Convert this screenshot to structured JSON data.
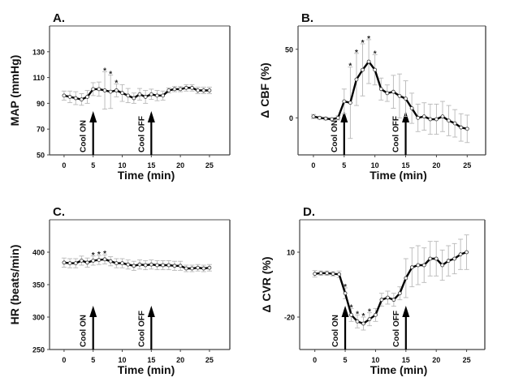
{
  "chart_data": [
    {
      "type": "line",
      "panel_label": "A.",
      "title": "",
      "xlabel": "Time (min)",
      "ylabel": "MAP (mmHg)",
      "xlim": [
        -2.5,
        28.5
      ],
      "ylim": [
        50,
        150
      ],
      "xticks": [
        0,
        5,
        10,
        15,
        20,
        25
      ],
      "yticks": [
        50,
        70,
        90,
        110,
        130
      ],
      "x": [
        0,
        1,
        2,
        3,
        4,
        5,
        6,
        7,
        8,
        9,
        10,
        11,
        12,
        13,
        14,
        15,
        16,
        17,
        18,
        19,
        20,
        21,
        22,
        23,
        24,
        25
      ],
      "series": [
        {
          "name": "MAP",
          "values": [
            96,
            95,
            94,
            93,
            95,
            101,
            101,
            100,
            99,
            100,
            98,
            96,
            94,
            97,
            95,
            97,
            96,
            96,
            100,
            101,
            101,
            102,
            102,
            100,
            100,
            100
          ],
          "errors": [
            3.5,
            4.5,
            5,
            4.5,
            5,
            5,
            5.5,
            14.5,
            13,
            5,
            6.5,
            5.5,
            4,
            4.5,
            5,
            4,
            4,
            3.5,
            2,
            2,
            2,
            2.5,
            2.5,
            2.5,
            2.5,
            2.5
          ]
        }
      ],
      "significant_x": [
        7,
        8,
        9
      ],
      "annotations": [
        {
          "text": "Cool ON",
          "x": 5
        },
        {
          "text": "Cool OFF",
          "x": 15
        }
      ],
      "grid": false
    },
    {
      "type": "line",
      "panel_label": "B.",
      "title": "",
      "xlabel": "Time (min)",
      "ylabel": "Δ CBF (%)",
      "xlim": [
        -2.5,
        28
      ],
      "ylim": [
        -27,
        67
      ],
      "xticks": [
        0,
        5,
        10,
        15,
        20,
        25
      ],
      "yticks": [
        0,
        50
      ],
      "x": [
        0,
        1,
        2,
        3,
        4,
        5,
        6,
        7,
        8,
        9,
        10,
        11,
        12,
        13,
        14,
        15,
        16,
        17,
        18,
        19,
        20,
        21,
        22,
        23,
        24,
        25
      ],
      "series": [
        {
          "name": "CBF change",
          "values": [
            1,
            0,
            -0.5,
            -1,
            0,
            12,
            11,
            28,
            35,
            41,
            35,
            21,
            18,
            19,
            16,
            14,
            7,
            0,
            1,
            -1,
            -1,
            1,
            -2,
            -4,
            -7,
            -8
          ],
          "errors": [
            1.5,
            1,
            1,
            1,
            1.5,
            9,
            26,
            19,
            19,
            16,
            11,
            8,
            6,
            12,
            16,
            13,
            11,
            10,
            10,
            11,
            11,
            11,
            11,
            10,
            10,
            10
          ]
        }
      ],
      "significant_x": [
        6,
        7,
        8,
        9,
        10
      ],
      "annotations": [
        {
          "text": "Cool ON",
          "x": 5
        },
        {
          "text": "Cool OFF",
          "x": 15
        }
      ],
      "grid": false
    },
    {
      "type": "line",
      "panel_label": "C.",
      "title": "",
      "xlabel": "Time (min)",
      "ylabel": "HR (beats/min)",
      "xlim": [
        -2.5,
        28.5
      ],
      "ylim": [
        250,
        450
      ],
      "xticks": [
        0,
        5,
        10,
        15,
        20,
        25
      ],
      "yticks": [
        250,
        300,
        350,
        400
      ],
      "x": [
        0,
        1,
        2,
        3,
        4,
        5,
        6,
        7,
        8,
        9,
        10,
        11,
        12,
        13,
        14,
        15,
        16,
        17,
        18,
        19,
        20,
        21,
        22,
        23,
        24,
        25
      ],
      "series": [
        {
          "name": "HR",
          "values": [
            384,
            383,
            383,
            387,
            384,
            387,
            388,
            389,
            386,
            383,
            383,
            381,
            379,
            381,
            380,
            381,
            380,
            380,
            380,
            379,
            379,
            375,
            375,
            376,
            375,
            376
          ],
          "errors": [
            7,
            7,
            7,
            7,
            7,
            7,
            7,
            7,
            7,
            7,
            7,
            7,
            7,
            7,
            7,
            7,
            7,
            7,
            7,
            7,
            7,
            5,
            5,
            5,
            5,
            5
          ]
        }
      ],
      "significant_x": [
        5,
        6,
        7
      ],
      "annotations": [
        {
          "text": "Cool ON",
          "x": 5
        },
        {
          "text": "Cool OFF",
          "x": 15
        }
      ],
      "grid": false
    },
    {
      "type": "line",
      "panel_label": "D.",
      "title": "",
      "xlabel": "Time (min)",
      "ylabel": "Δ CVR (%)",
      "xlim": [
        -2.5,
        28
      ],
      "ylim": [
        -35,
        25
      ],
      "xticks": [
        0,
        5,
        10,
        15,
        20,
        25
      ],
      "yticks": [
        -20,
        10
      ],
      "x": [
        0,
        1,
        2,
        3,
        4,
        5,
        6,
        7,
        8,
        9,
        10,
        11,
        12,
        13,
        14,
        15,
        16,
        17,
        18,
        19,
        20,
        21,
        22,
        23,
        24,
        25
      ],
      "series": [
        {
          "name": "CVR change",
          "values": [
            0,
            0.3,
            0.3,
            0,
            -0.2,
            -9,
            -19,
            -22,
            -23,
            -21,
            -19,
            -12,
            -11,
            -12,
            -9,
            -2,
            3,
            4,
            4,
            7,
            7,
            4,
            6,
            7,
            9,
            10
          ],
          "errors": [
            1.5,
            1,
            1,
            1,
            1.5,
            2.5,
            3,
            3,
            3,
            3,
            3,
            3,
            3,
            3,
            3,
            9,
            9,
            9,
            8,
            8,
            8,
            7,
            7,
            7,
            7,
            8
          ]
        }
      ],
      "significant_x": [
        5,
        6,
        7,
        8,
        9
      ],
      "annotations": [
        {
          "text": "Cool ON",
          "x": 5
        },
        {
          "text": "Cool OFF",
          "x": 15
        }
      ],
      "grid": false
    }
  ]
}
